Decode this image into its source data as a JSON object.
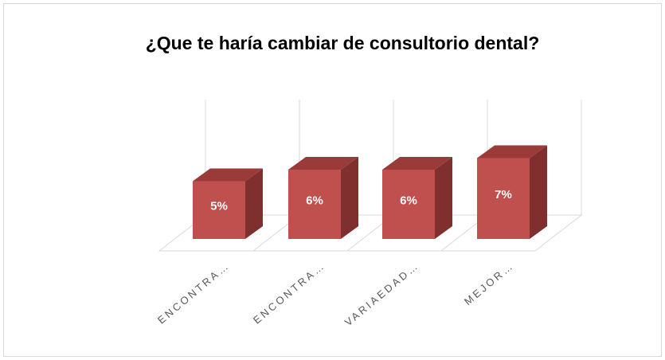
{
  "chart_data": {
    "type": "bar3d",
    "title": "¿Que te haría cambiar de consultorio dental?",
    "categories": [
      "ENCONTRA…",
      "ENCONTRA…",
      "VARIAEDAD…",
      "MEJOR…"
    ],
    "values": [
      5,
      6,
      6,
      7
    ],
    "value_labels": [
      "5%",
      "6%",
      "6%",
      "7%"
    ],
    "color": "#c0504d"
  }
}
